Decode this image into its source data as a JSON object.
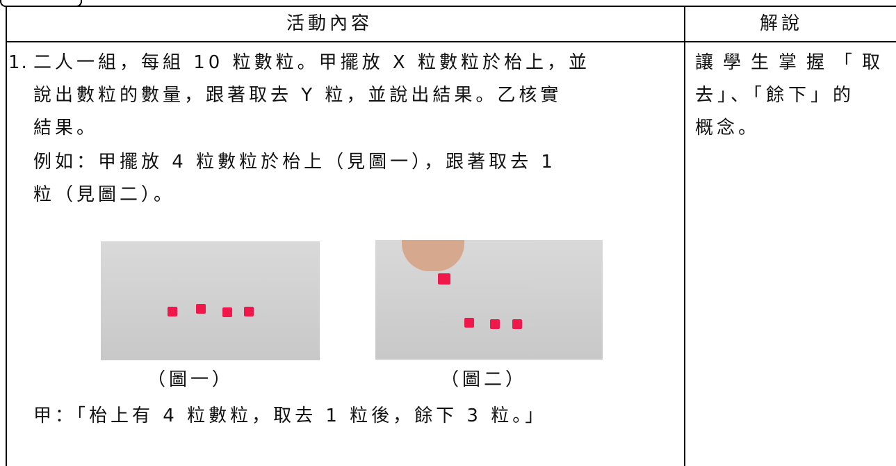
{
  "table": {
    "headers": [
      "活動內容",
      "解說"
    ],
    "item_number": "1.",
    "left_lines": [
      "二人一組，每組 10 粒數粒。甲擺放 X 粒數粒於枱上，並",
      "說出數粒的數量，跟著取去 Y 粒，並說出結果。乙核實",
      "結果。",
      "例如：甲擺放 4 粒數粒於枱上（見圖一），跟著取去 1",
      "粒（見圖二）。"
    ],
    "captions": [
      "（圖一）",
      "（圖二）"
    ],
    "dialogue": "甲：「枱上有 4 粒數粒，取去 1 粒後，餘下 3 粒。」",
    "right_lines": [
      "讓學生掌握「取",
      "去」、「餘下」的",
      "概念。"
    ]
  }
}
